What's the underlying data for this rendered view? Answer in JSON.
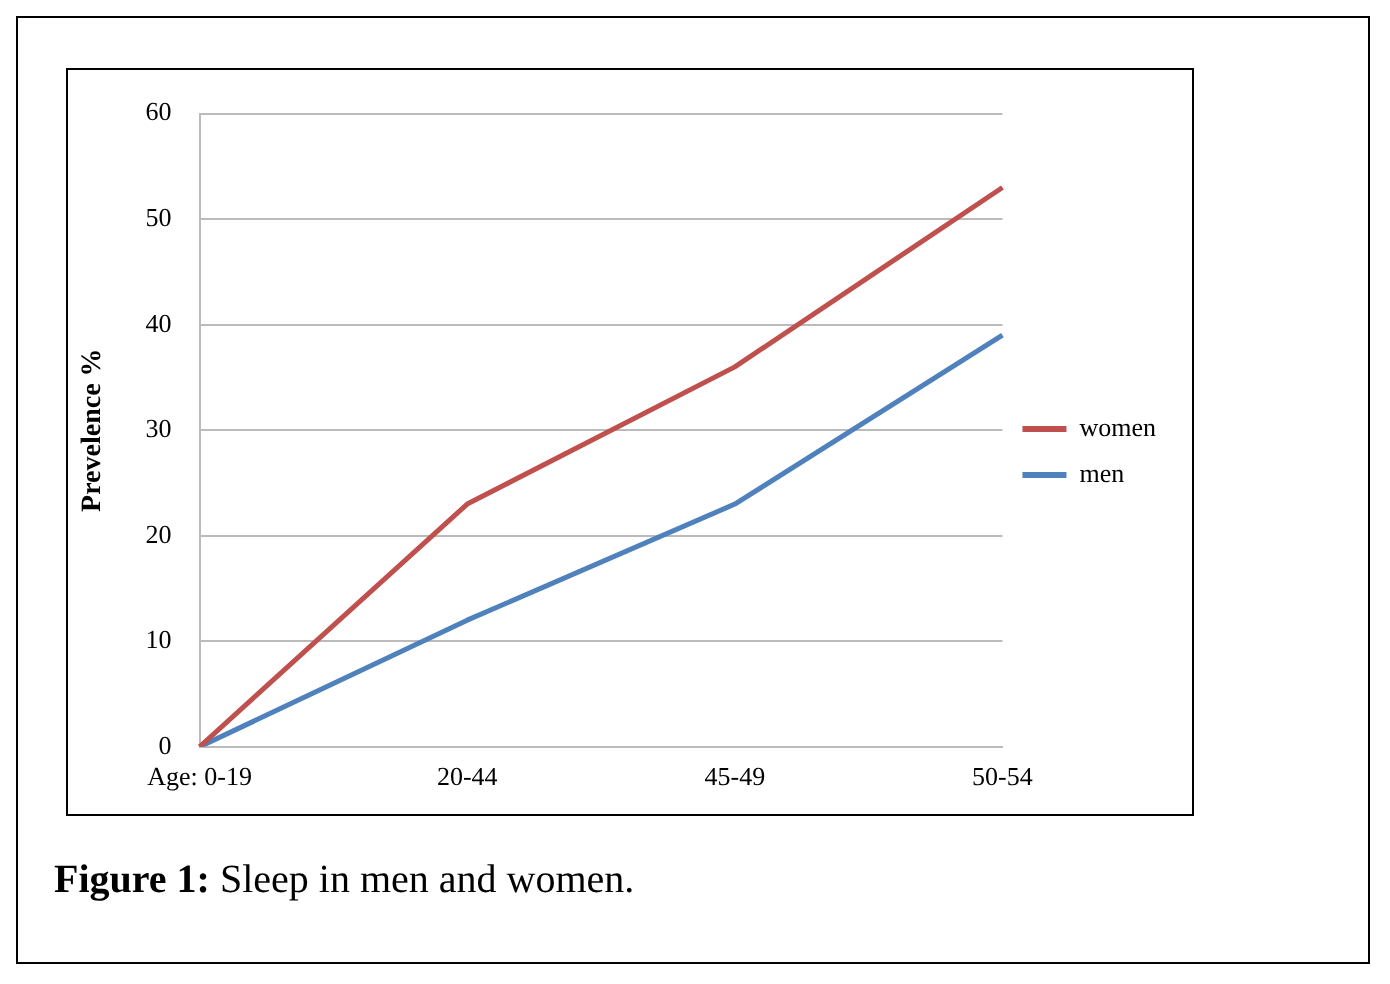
{
  "chart_data": {
    "type": "line",
    "ylabel": "Prevelence %",
    "categories": [
      "Age: 0-19",
      "20-44",
      "45-49",
      "50-54"
    ],
    "series": [
      {
        "name": "women",
        "color": "#c0504d",
        "values": [
          0,
          23,
          36,
          53
        ]
      },
      {
        "name": "men",
        "color": "#4f81bd",
        "values": [
          0,
          12,
          23,
          39
        ]
      }
    ],
    "ylim": [
      0,
      60
    ],
    "yticks": [
      0,
      10,
      20,
      30,
      40,
      50,
      60
    ],
    "grid": "y",
    "legend": "right",
    "marker": "none",
    "line_style": "solid",
    "annotations": [
      "Figure 1: Sleep in men and women."
    ]
  }
}
